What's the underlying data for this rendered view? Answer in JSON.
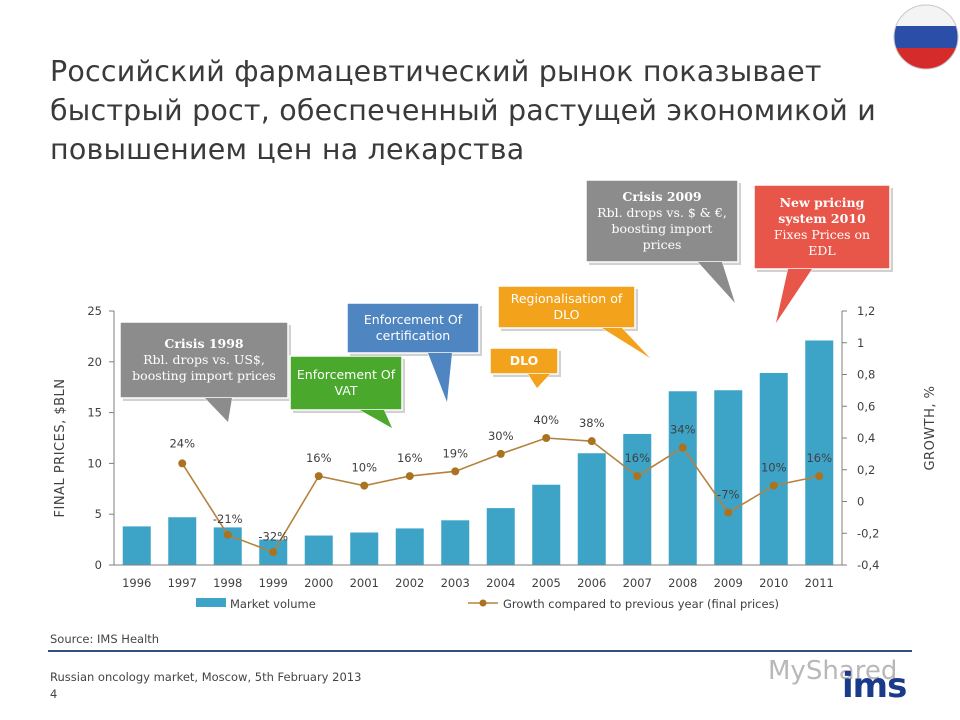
{
  "page": {
    "title": "Российский фармацевтический рынок показывает быстрый рост, обеспеченный растущей экономикой и повышением цен на лекарства",
    "source": "Source: IMS Health",
    "footer_line1": "Russian oncology market, Moscow, 5th February 2013",
    "footer_line2": "4",
    "logo": "ims",
    "watermark": "MyShared"
  },
  "colors": {
    "bar": "#3da4c8",
    "line": "#b5823d",
    "marker": "#a9731f",
    "callout_gray": "#8c8c8c",
    "callout_green": "#4aa82c",
    "callout_blue": "#4f86c2",
    "callout_orange": "#f3a21c",
    "callout_red": "#e8564a",
    "flag_white": "#f4f4f4",
    "flag_blue": "#2b4fa8",
    "flag_red": "#d62b2b"
  },
  "callouts": [
    {
      "id": "crisis-1998",
      "title": "Crisis 1998",
      "text": "Rbl. drops vs. US$, boosting import prices",
      "color": "callout_gray"
    },
    {
      "id": "enforcement-vat",
      "title": "",
      "text": "Enforcement Of VAT",
      "color": "callout_green"
    },
    {
      "id": "enforcement-cert",
      "title": "",
      "text": "Enforcement Of certification",
      "color": "callout_blue"
    },
    {
      "id": "regionalisation",
      "title": "",
      "text": "Regionalisation of DLO",
      "color": "callout_orange"
    },
    {
      "id": "dlo",
      "title": "DLO",
      "text": "",
      "color": "callout_orange"
    },
    {
      "id": "crisis-2009",
      "title": "Crisis 2009",
      "text": "Rbl. drops vs. $ & €, boosting import prices",
      "color": "callout_gray"
    },
    {
      "id": "pricing-2010",
      "title": "New pricing system 2010",
      "text": "Fixes Prices on EDL",
      "color": "callout_red"
    }
  ],
  "chart_data": {
    "type": "bar",
    "categories": [
      "1996",
      "1997",
      "1998",
      "1999",
      "2000",
      "2001",
      "2002",
      "2003",
      "2004",
      "2005",
      "2006",
      "2007",
      "2008",
      "2009",
      "2010",
      "2011"
    ],
    "series": [
      {
        "name": "Market volume",
        "type": "bar",
        "axis": "left",
        "values": [
          3.8,
          4.7,
          3.7,
          2.5,
          2.9,
          3.2,
          3.6,
          4.4,
          5.6,
          7.9,
          11.0,
          12.9,
          17.1,
          17.2,
          18.9,
          22.1
        ]
      },
      {
        "name": "Growth compared to previous year (final prices)",
        "type": "line",
        "axis": "right",
        "values": [
          null,
          0.24,
          -0.21,
          -0.32,
          0.16,
          0.1,
          0.16,
          0.19,
          0.3,
          0.4,
          0.38,
          0.16,
          0.34,
          -0.07,
          0.1,
          0.16
        ],
        "labels": [
          "",
          "24%",
          "-21%",
          "-32%",
          "16%",
          "10%",
          "16%",
          "19%",
          "30%",
          "40%",
          "38%",
          "16%",
          "34%",
          "-7%",
          "10%",
          "16%"
        ]
      }
    ],
    "ylabel": "FINAL PRICES, $BLN",
    "ylabel_right": "GROWTH, %",
    "ylim": [
      0,
      25
    ],
    "yticks": [
      "0",
      "5",
      "10",
      "15",
      "20",
      "25"
    ],
    "ylim_right": [
      -0.4,
      1.2
    ],
    "yticks_right": [
      "-0,4",
      "-0,2",
      "0",
      "0,2",
      "0,4",
      "0,6",
      "0,8",
      "1",
      "1,2"
    ],
    "legend_position": "bottom",
    "grid": false
  }
}
